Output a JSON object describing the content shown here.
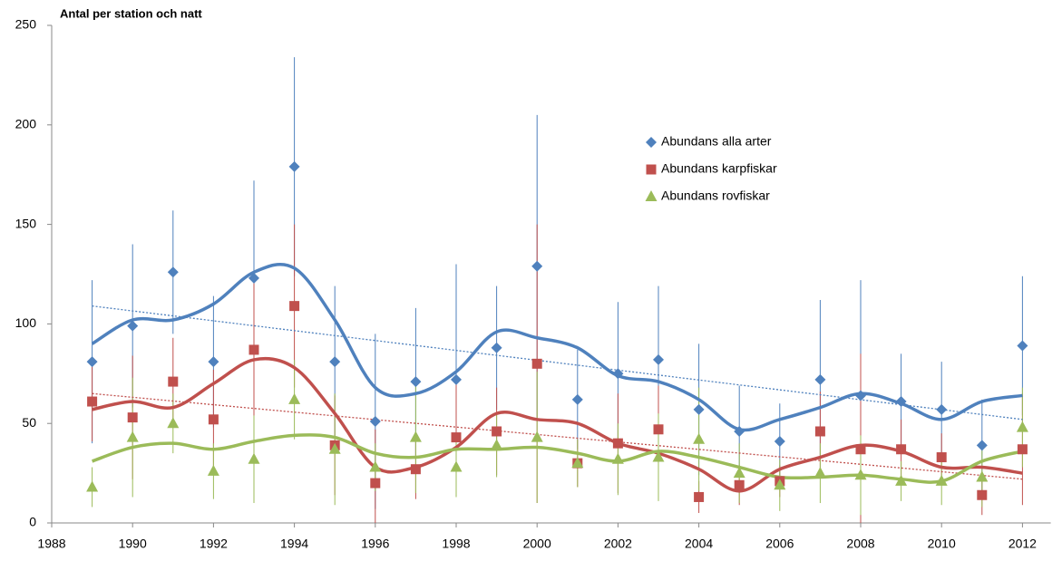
{
  "chart_data": {
    "type": "scatter-error",
    "title": "Antal per station och natt",
    "x": [
      1989,
      1990,
      1991,
      1992,
      1993,
      1994,
      1995,
      1996,
      1997,
      1998,
      1999,
      2000,
      2001,
      2002,
      2003,
      2004,
      2005,
      2006,
      2007,
      2008,
      2009,
      2010,
      2011,
      2012
    ],
    "xlim": [
      1988,
      2012.7
    ],
    "xticks": [
      1988,
      1990,
      1992,
      1994,
      1996,
      1998,
      2000,
      2002,
      2004,
      2006,
      2008,
      2010,
      2012
    ],
    "ylim": [
      0,
      250
    ],
    "yticks": [
      0,
      50,
      100,
      150,
      200,
      250
    ],
    "series": [
      {
        "name": "Abundans alla arter",
        "color": "#4f81bd",
        "marker": "diamond",
        "values": [
          81,
          99,
          126,
          81,
          123,
          179,
          81,
          51,
          71,
          72,
          88,
          129,
          62,
          75,
          82,
          57,
          46,
          41,
          72,
          64,
          61,
          57,
          39,
          89
        ],
        "errors": [
          41,
          41,
          31,
          33,
          49,
          55,
          38,
          44,
          37,
          58,
          31,
          76,
          25,
          36,
          37,
          33,
          23,
          19,
          40,
          58,
          24,
          24,
          23,
          35
        ],
        "smoothed": [
          90,
          102,
          102,
          110,
          126,
          128,
          102,
          68,
          65,
          76,
          96,
          93,
          88,
          74,
          71,
          62,
          47,
          52,
          58,
          65,
          60,
          52,
          61,
          64
        ],
        "trend": [
          109,
          52
        ]
      },
      {
        "name": "Abundans karpfiskar",
        "color": "#c0504d",
        "marker": "square",
        "values": [
          61,
          53,
          71,
          52,
          87,
          109,
          39,
          20,
          27,
          43,
          46,
          80,
          30,
          40,
          47,
          13,
          19,
          21,
          46,
          37,
          37,
          33,
          14,
          37
        ],
        "errors": [
          20,
          31,
          22,
          25,
          36,
          41,
          25,
          27,
          15,
          30,
          22,
          70,
          12,
          25,
          22,
          8,
          10,
          8,
          20,
          48,
          15,
          12,
          10,
          28
        ],
        "smoothed": [
          57,
          61,
          58,
          70,
          82,
          78,
          55,
          28,
          28,
          38,
          55,
          52,
          50,
          40,
          35,
          27,
          16,
          27,
          33,
          39,
          36,
          28,
          28,
          25
        ],
        "trend": [
          65,
          22
        ]
      },
      {
        "name": "Abundans rovfiskar",
        "color": "#9bbb59",
        "marker": "triangle",
        "values": [
          18,
          43,
          50,
          26,
          32,
          62,
          37,
          28,
          43,
          28,
          39,
          43,
          30,
          32,
          33,
          42,
          25,
          19,
          25,
          24,
          21,
          21,
          23,
          48
        ],
        "errors": [
          10,
          30,
          15,
          14,
          22,
          20,
          28,
          12,
          28,
          15,
          16,
          33,
          12,
          18,
          22,
          26,
          15,
          13,
          15,
          20,
          10,
          12,
          15,
          20
        ],
        "smoothed": [
          31,
          38,
          40,
          37,
          41,
          44,
          43,
          35,
          33,
          37,
          37,
          38,
          35,
          31,
          36,
          33,
          28,
          23,
          23,
          24,
          22,
          21,
          31,
          36
        ]
      }
    ]
  }
}
